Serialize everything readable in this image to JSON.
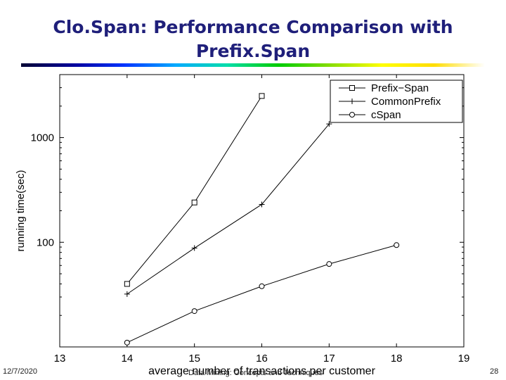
{
  "slide": {
    "title_line1": "Clo.Span: Performance Comparison with",
    "title_line2": "Prefix.Span",
    "footer_date": "12/7/2020",
    "footer_center": "Data Mining: Concepts and Techniques",
    "page_number": "28"
  },
  "chart_data": {
    "type": "line",
    "xlabel": "average number of transactions per customer",
    "ylabel": "running time(sec)",
    "x_scale": "linear",
    "y_scale": "log",
    "xlim": [
      13,
      19
    ],
    "ylim": [
      10,
      4000
    ],
    "x_ticks": [
      13,
      14,
      15,
      16,
      17,
      18,
      19
    ],
    "y_tick_labels": [
      {
        "value": 100,
        "label": "100"
      },
      {
        "value": 1000,
        "label": "1000"
      }
    ],
    "grid": false,
    "legend_position": "top-right",
    "series": [
      {
        "name": "Prefix−Span",
        "marker": "square",
        "x": [
          14,
          15,
          16
        ],
        "y": [
          40,
          240,
          2500
        ]
      },
      {
        "name": "CommonPrefix",
        "marker": "plus",
        "x": [
          14,
          15,
          16,
          17
        ],
        "y": [
          32,
          88,
          230,
          1350
        ]
      },
      {
        "name": "cSpan",
        "marker": "circle",
        "x": [
          14,
          15,
          16,
          17,
          18
        ],
        "y": [
          11,
          22,
          38,
          62,
          94
        ]
      }
    ]
  }
}
